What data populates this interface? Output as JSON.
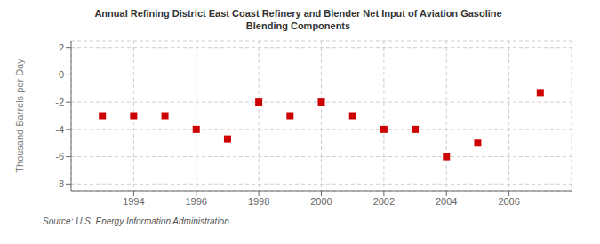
{
  "chart_data": {
    "type": "scatter",
    "title": "Annual Refining District East Coast Refinery and Blender Net Input of Aviation Gasoline\nBlending Components",
    "ylabel": "Thousand Barrels per Day",
    "annotations": [
      "Source: U.S. Energy Information Administration"
    ],
    "x": [
      1993,
      1994,
      1995,
      1996,
      1997,
      1998,
      1999,
      2000,
      2001,
      2002,
      2003,
      2004,
      2005,
      2007
    ],
    "values": [
      -3.0,
      -3.0,
      -3.0,
      -4.0,
      -4.7,
      -2.0,
      -3.0,
      -2.0,
      -3.0,
      -4.0,
      -4.0,
      -6.0,
      -5.0,
      -1.3
    ],
    "color": "#cc0000",
    "marker": "square",
    "xlim": [
      1992.0,
      2008.0
    ],
    "xticks": [
      1994,
      1996,
      1998,
      2000,
      2002,
      2004,
      2006
    ],
    "ylim": [
      -8.5,
      2.5
    ],
    "yticks": [
      -8,
      -6,
      -4,
      -2,
      0,
      2
    ],
    "grid": true
  }
}
